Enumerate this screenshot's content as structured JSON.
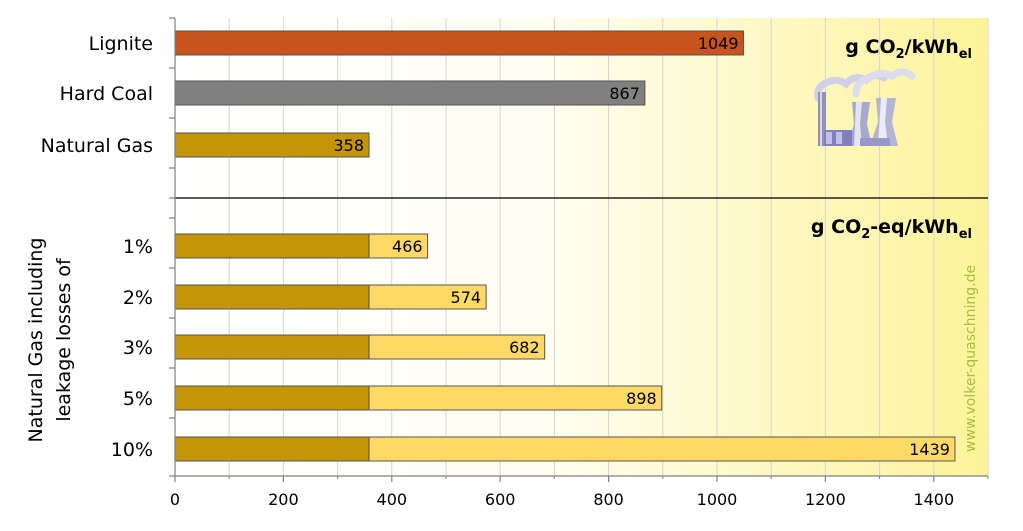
{
  "chart_data": {
    "type": "bar",
    "orientation": "horizontal",
    "xlim": [
      0,
      1500
    ],
    "xticks": [
      0,
      200,
      400,
      600,
      800,
      1000,
      1200,
      1400
    ],
    "grid": "vertical",
    "top_panel": {
      "unit_main": "g CO",
      "unit_sub1": "2",
      "unit_mid": "/kWh",
      "unit_sub2": "el",
      "bars": [
        {
          "label": "Lignite",
          "value": 1049,
          "color": "#c8531c"
        },
        {
          "label": "Hard Coal",
          "value": 867,
          "color": "#808080"
        },
        {
          "label": "Natural Gas",
          "value": 358,
          "color": "#c49409"
        }
      ]
    },
    "bottom_panel": {
      "group_label_line1": "Natural Gas including",
      "group_label_line2": "leakage losses of",
      "unit_main": "g CO",
      "unit_sub1": "2",
      "unit_mid": "-eq/kWh",
      "unit_sub2": "el",
      "base_value": 358,
      "base_color": "#c49409",
      "leak_color": "#ffd966",
      "bars": [
        {
          "label": "1%",
          "value": 466
        },
        {
          "label": "2%",
          "value": 574
        },
        {
          "label": "3%",
          "value": 682
        },
        {
          "label": "5%",
          "value": 898
        },
        {
          "label": "10%",
          "value": 1439
        }
      ]
    },
    "watermark": "www.volker-quaschning.de"
  }
}
